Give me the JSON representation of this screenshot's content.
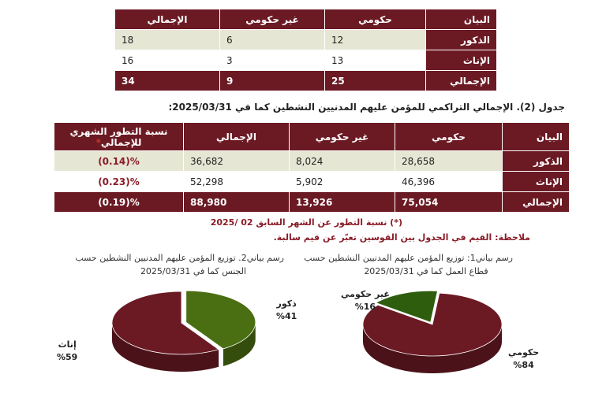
{
  "table1": {
    "headers": [
      "البيان",
      "حكومي",
      "غير حكومي",
      "الإجمالي"
    ],
    "rows": [
      {
        "label": "الذكور",
        "gov": "12",
        "nongov": "6",
        "total": "18"
      },
      {
        "label": "الإناث",
        "gov": "13",
        "nongov": "3",
        "total": "16"
      },
      {
        "label": "الإجمالي",
        "gov": "25",
        "nongov": "9",
        "total": "34"
      }
    ]
  },
  "table2": {
    "caption": "جدول (2). الإجمالي التراكمي للمؤمن عليهم المدنيين النشطين كما في 2025/03/31:",
    "headers": [
      "البيان",
      "حكومي",
      "غير حكومي",
      "الإجمالي",
      "نسبة التطور الشهري للإجمالي"
    ],
    "header_mark": "*",
    "rows": [
      {
        "label": "الذكور",
        "gov": "28,658",
        "nongov": "8,024",
        "total": "36,682",
        "change": "(0.14)%"
      },
      {
        "label": "الإناث",
        "gov": "46,396",
        "nongov": "5,902",
        "total": "52,298",
        "change": "(0.23)%"
      },
      {
        "label": "الإجمالي",
        "gov": "75,054",
        "nongov": "13,926",
        "total": "88,980",
        "change": "(0.19)%"
      }
    ]
  },
  "notes": {
    "note1": "(*) نسبة التطور عن الشهر السابق 02 /2025",
    "note2": "ملاحظة: القيم في الجدول بين القوسين تعبّر عن قيم سالبة."
  },
  "pie1": {
    "title_line1": "رسم بياني1: توزيع المؤمن عليهم المدنيين النشطين حسب",
    "title_line2": "قطاع العمل كما في 2025/03/31",
    "slices": [
      {
        "name": "حكومي",
        "pct_label": "%84",
        "value": 84,
        "color": "#6b1a24"
      },
      {
        "name": "غير حكومي",
        "pct_label": "%16",
        "value": 16,
        "color": "#2e5d0e"
      }
    ]
  },
  "pie2": {
    "title_line1": "رسم بياني2. توزيع المؤمن عليهم المدنيين النشطين حسب",
    "title_line2": "الجنس كما في 2025/03/31",
    "slices": [
      {
        "name": "إناث",
        "pct_label": "%59",
        "value": 59,
        "color": "#6b1a24"
      },
      {
        "name": "ذكور",
        "pct_label": "%41",
        "value": 41,
        "color": "#4a6e12"
      }
    ]
  }
}
